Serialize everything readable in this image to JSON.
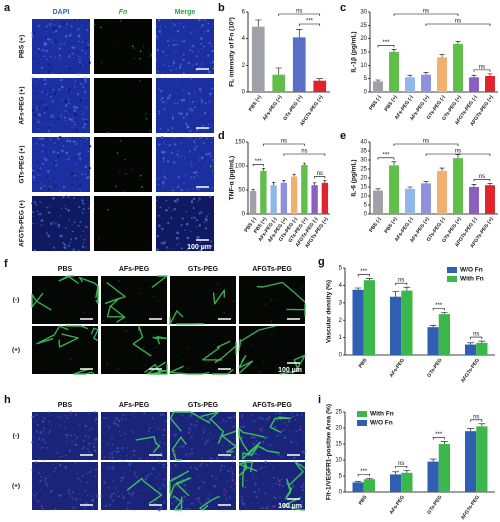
{
  "panel_labels": [
    "a",
    "b",
    "c",
    "d",
    "e",
    "f",
    "g",
    "h",
    "i"
  ],
  "panel_a": {
    "columns": [
      "DAPI",
      "Fn",
      "Merge"
    ],
    "rows": [
      "PBS (+)",
      "AFs-PEG (+)",
      "GTs-PEG (+)",
      "AFGTs-PEG (+)"
    ],
    "scale_bar": "100 µm"
  },
  "panel_f": {
    "columns": [
      "PBS",
      "AFs-PEG",
      "GTs-PEG",
      "AFGTs-PEG"
    ],
    "rows": [
      "(-)",
      "(+)"
    ],
    "scale_bar": "100 µm"
  },
  "panel_h": {
    "columns": [
      "PBS",
      "AFs-PEG",
      "GTs-PEG",
      "AFGTs-PEG"
    ],
    "rows": [
      "(-)",
      "(+)"
    ],
    "scale_bar": "100 µm"
  },
  "chart_data": [
    {
      "type": "bar",
      "ylabel": "FL intensity of Fn (10³)",
      "categories": [
        "PBS (+)",
        "AFs-PEG (+)",
        "GTs-PEG (+)",
        "AFGTs-PEG (+)"
      ],
      "values": [
        4.9,
        1.3,
        4.1,
        0.85
      ],
      "errors": [
        0.5,
        0.5,
        0.6,
        0.15
      ],
      "colors": [
        "#a0a0a8",
        "#5fbf4a",
        "#5a6fc8",
        "#e0242c"
      ],
      "ylim": [
        0,
        6
      ],
      "yticks": [
        0,
        2,
        4,
        6
      ],
      "annotations": [
        "ns",
        "***"
      ]
    },
    {
      "type": "bar",
      "ylabel": "IL-1β (pg/mL)",
      "categories": [
        "PBS (-)",
        "PBS (+)",
        "AFs-PEG (-)",
        "AFs-PEG (+)",
        "GTs-PEG (-)",
        "GTs-PEG (+)",
        "AFGTs-PEG (-)",
        "AFGTs-PEG (+)"
      ],
      "values": [
        4,
        15,
        5.5,
        6.5,
        13,
        18,
        5.5,
        6
      ],
      "errors": [
        0.5,
        1,
        0.8,
        0.8,
        1,
        1,
        0.8,
        0.8
      ],
      "colors": [
        "#a0a0a8",
        "#5fbf4a",
        "#8fb8e8",
        "#9090e0",
        "#f2b070",
        "#5fbf4a",
        "#8a5fc0",
        "#e0242c"
      ],
      "ylim": [
        0,
        30
      ],
      "yticks": [
        0,
        5,
        10,
        15,
        20,
        25,
        30
      ],
      "annotations": [
        "***",
        "ns",
        "ns",
        "ns"
      ]
    },
    {
      "type": "bar",
      "ylabel": "TNF-α (pg/mL)",
      "categories": [
        "PBS (-)",
        "PBS (+)",
        "AFs-PEG (-)",
        "AFs-PEG (+)",
        "GTs-PEG (-)",
        "GTs-PEG (+)",
        "AFGTs-PEG (-)",
        "AFGTs-PEG (+)"
      ],
      "values": [
        48,
        90,
        60,
        65,
        78,
        102,
        60,
        65
      ],
      "errors": [
        3,
        5,
        6,
        5,
        5,
        4,
        5,
        5
      ],
      "colors": [
        "#a0a0a8",
        "#5fbf4a",
        "#8fb8e8",
        "#9090e0",
        "#f2b070",
        "#5fbf4a",
        "#8a5fc0",
        "#e0242c"
      ],
      "ylim": [
        0,
        150
      ],
      "yticks": [
        0,
        50,
        100,
        150
      ],
      "annotations": [
        "***",
        "ns",
        "ns",
        "ns"
      ]
    },
    {
      "type": "bar",
      "ylabel": "IL-6 (pg/mL)",
      "categories": [
        "PBS (-)",
        "PBS (+)",
        "AFs-PEG (-)",
        "AFs-PEG (+)",
        "GTs-PEG (-)",
        "GTs-PEG (+)",
        "AFGTs-PEG (-)",
        "AFGTs-PEG (+)"
      ],
      "values": [
        13,
        27,
        14,
        17,
        24,
        31,
        15,
        16
      ],
      "errors": [
        1,
        2,
        1,
        1,
        1.5,
        2,
        1.5,
        1
      ],
      "colors": [
        "#a0a0a8",
        "#5fbf4a",
        "#8fb8e8",
        "#9090e0",
        "#f2b070",
        "#5fbf4a",
        "#8a5fc0",
        "#e0242c"
      ],
      "ylim": [
        0,
        40
      ],
      "yticks": [
        0,
        5,
        10,
        15,
        20,
        25,
        30,
        35,
        40
      ],
      "annotations": [
        "***",
        "ns",
        "ns",
        "ns"
      ]
    },
    {
      "type": "grouped_bar",
      "ylabel": "Vascular density (%)",
      "categories": [
        "PBS",
        "AFs-PEG",
        "GTs-PEG",
        "AFGTs-PEG"
      ],
      "series": [
        {
          "name": "W/O Fn",
          "color": "#2f5fb0",
          "values": [
            3.75,
            3.35,
            1.6,
            0.6
          ],
          "errors": [
            0.1,
            0.3,
            0.1,
            0.1
          ]
        },
        {
          "name": "With Fn",
          "color": "#3cb84a",
          "values": [
            4.3,
            3.7,
            2.35,
            0.7
          ],
          "errors": [
            0.1,
            0.2,
            0.1,
            0.1
          ]
        }
      ],
      "ylim": [
        0,
        5
      ],
      "yticks": [
        0,
        1,
        2,
        3,
        4,
        5
      ],
      "annotations": [
        "***",
        "ns",
        "***",
        "ns"
      ],
      "legend": "upper right"
    },
    {
      "type": "grouped_bar",
      "ylabel": "Flt-1/VEGFR1-positive Area (%)",
      "categories": [
        "PBS",
        "AFs-PEG",
        "GTs-PEG",
        "AFGTs-PEG"
      ],
      "series": [
        {
          "name": "With Fn",
          "color": "#3cb84a",
          "values": [
            4,
            6,
            15,
            20.5
          ],
          "errors": [
            0.3,
            0.8,
            0.8,
            0.8
          ]
        },
        {
          "name": "W/O Fn",
          "color": "#2f5fb0",
          "values": [
            3,
            5.5,
            9.5,
            19
          ],
          "errors": [
            0.3,
            0.8,
            0.8,
            0.8
          ]
        }
      ],
      "bar_order": [
        1,
        0
      ],
      "ylim": [
        0,
        25
      ],
      "yticks": [
        0,
        5,
        10,
        15,
        20,
        25
      ],
      "annotations": [
        "***",
        "ns",
        "***",
        "ns"
      ],
      "legend": "upper left"
    }
  ]
}
